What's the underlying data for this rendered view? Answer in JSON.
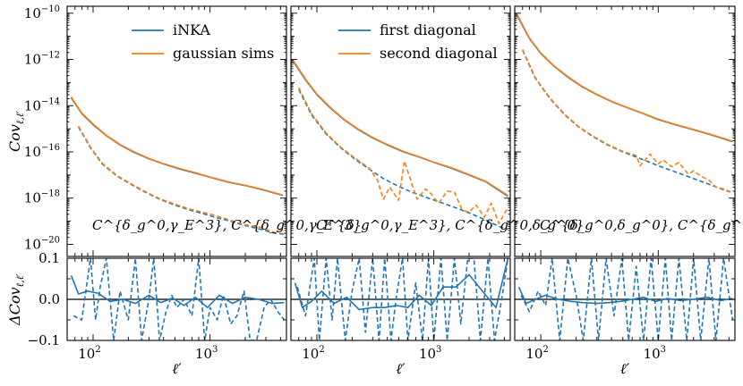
{
  "colors": {
    "blue": "#1f77b4",
    "orange": "#ff7f0e",
    "axis": "#000000"
  },
  "chart_data": [
    {
      "type": "line",
      "panel": "top-left",
      "xscale": "log",
      "yscale": "log",
      "xlim": [
        60,
        4500
      ],
      "ylim": [
        3e-21,
        2e-10
      ],
      "ylabel": "Cov_{ℓ,ℓ'}",
      "legend": {
        "placement": "top",
        "entries": [
          {
            "label": "iNKA",
            "color": "#1f77b4"
          },
          {
            "label": "gaussian sims",
            "color": "#ff7f0e"
          }
        ]
      },
      "annotation": "C^{δ_g^0,γ_E^3}, C^{δ_g^0,γ_E^3}",
      "series": [
        {
          "style": "solid",
          "color": "#1f77b4",
          "x": [
            65,
            80,
            100,
            130,
            170,
            220,
            300,
            400,
            550,
            750,
            1000,
            1400,
            2000,
            2800,
            4200
          ],
          "y": [
            2.2e-14,
            4.5e-15,
            1.5e-15,
            5e-16,
            2e-16,
            1e-16,
            5e-17,
            3e-17,
            1.8e-17,
            1.2e-17,
            8e-18,
            5e-18,
            3.5e-18,
            2.3e-18,
            1.3e-18
          ]
        },
        {
          "style": "solid",
          "color": "#ff7f0e",
          "x": [
            65,
            80,
            100,
            130,
            170,
            220,
            300,
            400,
            550,
            750,
            1000,
            1400,
            2000,
            2800,
            4200
          ],
          "y": [
            2.4e-14,
            4.8e-15,
            1.6e-15,
            5.2e-16,
            2.1e-16,
            1.05e-16,
            5.2e-17,
            3.1e-17,
            1.9e-17,
            1.25e-17,
            8.2e-18,
            5.2e-18,
            3.6e-18,
            2.4e-18,
            1.35e-18
          ]
        },
        {
          "style": "dashed",
          "color": "#1f77b4",
          "x": [
            75,
            95,
            120,
            160,
            210,
            280,
            370,
            500,
            650,
            850,
            1100,
            1500,
            2000,
            2700,
            3600,
            4300
          ],
          "y": [
            1.2e-15,
            1.5e-16,
            3e-17,
            9e-18,
            4e-18,
            1.8e-18,
            9e-19,
            5e-19,
            3.2e-19,
            2.2e-19,
            1.5e-19,
            1e-19,
            6.5e-20,
            4.5e-20,
            3e-20,
            2.8e-20
          ]
        },
        {
          "style": "dashed",
          "color": "#ff7f0e",
          "x": [
            75,
            95,
            120,
            160,
            210,
            280,
            370,
            500,
            650,
            850,
            1100,
            1500,
            2000,
            2700,
            3600,
            4000,
            4300
          ],
          "y": [
            1.3e-15,
            1.6e-16,
            3.2e-17,
            9.5e-18,
            4.2e-18,
            1.9e-18,
            9.5e-19,
            5.5e-19,
            3.5e-19,
            2.5e-19,
            1.8e-19,
            1.1e-19,
            7e-20,
            5.5e-20,
            3.2e-20,
            4.5e-20,
            2.6e-20
          ]
        }
      ]
    },
    {
      "type": "line",
      "panel": "top-middle",
      "xscale": "log",
      "yscale": "log",
      "xlim": [
        60,
        4500
      ],
      "ylim": [
        3e-21,
        2e-10
      ],
      "legend": {
        "placement": "top",
        "entries": [
          {
            "label": "first diagonal",
            "color": "#1f77b4"
          },
          {
            "label": "second diagonal",
            "color": "#ff7f0e"
          }
        ]
      },
      "annotation": "C^{δ_g^0,γ_E^3}, C^{δ_g^0,δ_g^0}",
      "series": [
        {
          "style": "solid",
          "color": "#1f77b4",
          "x": [
            62,
            80,
            100,
            130,
            170,
            220,
            300,
            400,
            550,
            750,
            1000,
            1400,
            2000,
            2800,
            4300
          ],
          "y": [
            9e-13,
            1.3e-13,
            3e-14,
            8e-15,
            2.5e-15,
            1e-15,
            4e-16,
            2e-16,
            1e-16,
            6e-17,
            3.5e-17,
            2e-17,
            1e-17,
            5e-18,
            1.2e-18
          ]
        },
        {
          "style": "solid",
          "color": "#ff7f0e",
          "x": [
            62,
            80,
            100,
            130,
            170,
            220,
            300,
            400,
            550,
            750,
            1000,
            1400,
            2000,
            2800,
            4300
          ],
          "y": [
            1e-12,
            1.4e-13,
            3.2e-14,
            8.5e-15,
            2.6e-15,
            1.05e-15,
            4.2e-16,
            2.1e-16,
            1.05e-16,
            6.2e-17,
            3.6e-17,
            2.1e-17,
            1.05e-17,
            5.2e-18,
            1.3e-18
          ]
        },
        {
          "style": "dashed",
          "color": "#1f77b4",
          "x": [
            70,
            90,
            120,
            160,
            210,
            280,
            370,
            500,
            650,
            850,
            1100,
            1500,
            2000,
            2700,
            3600,
            4300
          ],
          "y": [
            5e-14,
            4e-15,
            6e-16,
            1.5e-16,
            5e-17,
            1.8e-17,
            7e-18,
            3.2e-18,
            1.8e-18,
            1.1e-18,
            7e-19,
            4e-19,
            2.3e-19,
            1.2e-19,
            6e-20,
            4.5e-20
          ]
        },
        {
          "style": "dashed",
          "color": "#ff7f0e",
          "x": [
            70,
            90,
            120,
            160,
            210,
            280,
            330,
            370,
            420,
            500,
            560,
            650,
            720,
            850,
            950,
            1100,
            1300,
            1500,
            1750,
            2000,
            2300,
            2700,
            3100,
            3600,
            4300
          ],
          "y": [
            6e-14,
            4.5e-15,
            6.5e-16,
            1.6e-16,
            5.5e-17,
            2e-17,
            6e-18,
            9e-19,
            3e-18,
            8e-19,
            4e-17,
            4e-18,
            9e-19,
            2.5e-18,
            1.5e-18,
            6e-19,
            2e-18,
            1.8e-18,
            3e-19,
            2.5e-19,
            5e-19,
            1.5e-19,
            6e-19,
            8e-20,
            4e-19
          ]
        }
      ]
    },
    {
      "type": "line",
      "panel": "top-right",
      "xscale": "log",
      "yscale": "log",
      "xlim": [
        60,
        4500
      ],
      "ylim": [
        3e-21,
        2e-10
      ],
      "annotation": "C^{δ_g^0,δ_g^0}, C^{δ_g^0,δ_g^0}",
      "series": [
        {
          "style": "solid",
          "color": "#1f77b4",
          "x": [
            62,
            80,
            100,
            130,
            170,
            220,
            300,
            400,
            550,
            750,
            1000,
            1400,
            2000,
            2800,
            4300
          ],
          "y": [
            9e-11,
            8e-12,
            1.8e-12,
            5e-13,
            1.7e-13,
            7e-14,
            3e-14,
            1.5e-14,
            8e-15,
            4.5e-15,
            2.5e-15,
            1.5e-15,
            9e-16,
            5.5e-16,
            2.8e-16
          ]
        },
        {
          "style": "solid",
          "color": "#ff7f0e",
          "x": [
            62,
            80,
            100,
            130,
            170,
            220,
            300,
            400,
            550,
            750,
            1000,
            1400,
            2000,
            2800,
            4300
          ],
          "y": [
            1e-10,
            8.5e-12,
            1.9e-12,
            5.2e-13,
            1.8e-13,
            7.3e-14,
            3.1e-14,
            1.55e-14,
            8.2e-15,
            4.6e-15,
            2.6e-15,
            1.55e-15,
            9.3e-16,
            5.7e-16,
            2.9e-16
          ]
        },
        {
          "style": "dashed",
          "color": "#1f77b4",
          "x": [
            70,
            90,
            120,
            160,
            210,
            280,
            370,
            500,
            650,
            850,
            1100,
            1500,
            2000,
            2700,
            3600,
            4300
          ],
          "y": [
            2.5e-12,
            1.5e-13,
            2e-14,
            4e-15,
            1.2e-15,
            4.5e-16,
            2e-16,
            1e-16,
            6e-17,
            3.5e-17,
            2.1e-17,
            1.2e-17,
            7e-18,
            4e-18,
            2.3e-18,
            1.7e-18
          ]
        },
        {
          "style": "dashed",
          "color": "#ff7f0e",
          "x": [
            70,
            90,
            120,
            160,
            210,
            280,
            370,
            500,
            650,
            700,
            850,
            1000,
            1100,
            1300,
            1500,
            1800,
            2000,
            2300,
            2700,
            3100,
            3600,
            4300
          ],
          "y": [
            2.7e-12,
            1.6e-13,
            2.1e-14,
            4.2e-15,
            1.25e-15,
            4.7e-16,
            2.1e-16,
            1.05e-16,
            7e-17,
            2.5e-17,
            8e-17,
            3e-17,
            4.5e-17,
            2.3e-17,
            3.5e-17,
            1.1e-17,
            1.5e-17,
            9e-18,
            6e-18,
            3e-18,
            2.5e-18,
            1.7e-18
          ]
        }
      ]
    },
    {
      "type": "line",
      "panel": "bottom-left",
      "xscale": "log",
      "xlim": [
        60,
        4500
      ],
      "ylim": [
        -0.1,
        0.1
      ],
      "xlabel": "ℓ'",
      "ylabel": "ΔCov_{ℓ,ℓ'}",
      "series": [
        {
          "style": "solid",
          "color": "#1f77b4",
          "x": [
            65,
            75,
            90,
            110,
            140,
            180,
            230,
            300,
            380,
            480,
            600,
            750,
            950,
            1200,
            1550,
            2000,
            2600,
            3400,
            4300
          ],
          "y": [
            0.058,
            0.013,
            0.02,
            0.015,
            -0.005,
            0.0,
            -0.01,
            0.01,
            -0.008,
            0.003,
            -0.015,
            0.005,
            -0.02,
            0.01,
            -0.01,
            0.005,
            0.0,
            -0.01,
            -0.008
          ]
        },
        {
          "style": "dashed",
          "color": "#1f77b4",
          "x": [
            68,
            80,
            95,
            105,
            115,
            130,
            150,
            170,
            200,
            230,
            260,
            300,
            330,
            370,
            420,
            470,
            520,
            600,
            700,
            800,
            900,
            1000,
            1150,
            1300,
            1500,
            1700,
            1950,
            2200,
            2500,
            2900,
            3300,
            3800,
            4300
          ],
          "y": [
            -0.04,
            -0.05,
            0.1,
            -0.05,
            0.03,
            0.1,
            -0.1,
            0.02,
            -0.05,
            0.1,
            -0.1,
            0.0,
            0.1,
            -0.1,
            -0.03,
            0.01,
            -0.02,
            0.0,
            -0.04,
            0.1,
            -0.1,
            -0.02,
            -0.05,
            0.01,
            -0.06,
            -0.04,
            0.02,
            -0.1,
            -0.1,
            -0.02,
            0.0,
            -0.03,
            -0.05
          ]
        }
      ]
    },
    {
      "type": "line",
      "panel": "bottom-middle",
      "xscale": "log",
      "xlim": [
        60,
        4500
      ],
      "ylim": [
        -0.1,
        0.1
      ],
      "xlabel": "ℓ'",
      "series": [
        {
          "style": "solid",
          "color": "#1f77b4",
          "x": [
            65,
            75,
            90,
            110,
            140,
            180,
            230,
            300,
            380,
            480,
            600,
            750,
            950,
            1200,
            1550,
            2000,
            2600,
            3400,
            4300
          ],
          "y": [
            0.04,
            -0.02,
            -0.005,
            0.02,
            -0.01,
            0.005,
            -0.025,
            -0.02,
            -0.02,
            -0.015,
            -0.02,
            0.01,
            -0.015,
            0.03,
            0.03,
            0.06,
            0.02,
            -0.02,
            0.1
          ]
        },
        {
          "style": "dashed",
          "color": "#1f77b4",
          "x": [
            68,
            80,
            95,
            105,
            120,
            135,
            150,
            175,
            200,
            230,
            260,
            300,
            340,
            380,
            430,
            480,
            540,
            600,
            700,
            800,
            900,
            1000,
            1150,
            1300,
            1500,
            1700,
            1950,
            2200,
            2500,
            2900,
            3300,
            3800,
            4300
          ],
          "y": [
            0.03,
            -0.04,
            0.1,
            -0.1,
            0.1,
            -0.05,
            0.1,
            -0.1,
            0.02,
            0.1,
            -0.08,
            0.1,
            -0.1,
            0.1,
            -0.1,
            0.01,
            0.1,
            -0.1,
            0.04,
            -0.1,
            0.1,
            -0.1,
            0.1,
            -0.1,
            0.1,
            -0.06,
            0.1,
            0.1,
            -0.1,
            0.1,
            -0.1,
            0.0,
            0.1
          ]
        }
      ]
    },
    {
      "type": "line",
      "panel": "bottom-right",
      "xscale": "log",
      "xlim": [
        60,
        4500
      ],
      "ylim": [
        -0.1,
        0.1
      ],
      "xlabel": "ℓ'",
      "series": [
        {
          "style": "solid",
          "color": "#1f77b4",
          "x": [
            65,
            75,
            90,
            110,
            140,
            180,
            230,
            300,
            380,
            480,
            600,
            750,
            950,
            1200,
            1550,
            2000,
            2600,
            3400,
            4300
          ],
          "y": [
            0.03,
            -0.01,
            0.0,
            0.01,
            0.0,
            -0.005,
            -0.008,
            -0.01,
            -0.008,
            -0.005,
            0.0,
            0.005,
            -0.005,
            0.002,
            -0.003,
            0.0,
            0.005,
            -0.003,
            0.002
          ]
        },
        {
          "style": "dashed",
          "color": "#1f77b4",
          "x": [
            68,
            80,
            95,
            110,
            125,
            145,
            170,
            200,
            230,
            270,
            310,
            360,
            420,
            490,
            560,
            650,
            750,
            870,
            1000,
            1150,
            1300,
            1500,
            1750,
            2000,
            2300,
            2700,
            3100,
            3600,
            4300
          ],
          "y": [
            0.01,
            -0.03,
            0.02,
            -0.015,
            0.1,
            -0.1,
            0.1,
            0.01,
            -0.1,
            0.1,
            -0.1,
            0.1,
            -0.04,
            0.1,
            -0.1,
            0.08,
            -0.1,
            0.1,
            -0.1,
            0.1,
            -0.1,
            0.1,
            -0.1,
            0.1,
            -0.1,
            0.1,
            -0.1,
            0.1,
            -0.05
          ]
        }
      ]
    }
  ],
  "axis_text": {
    "top_ylabel": "Cov",
    "top_ylabel_sub": "ℓ,ℓ′",
    "bottom_ylabel": "ΔCov",
    "bottom_ylabel_sub": "ℓ,ℓ′",
    "xlabel": "ℓ′",
    "top_yticks": [
      {
        "base": "10",
        "exp": "−10",
        "value": 1e-10
      },
      {
        "base": "10",
        "exp": "−12",
        "value": 1e-12
      },
      {
        "base": "10",
        "exp": "−14",
        "value": 1e-14
      },
      {
        "base": "10",
        "exp": "−16",
        "value": 1e-16
      },
      {
        "base": "10",
        "exp": "−18",
        "value": 1e-18
      },
      {
        "base": "10",
        "exp": "−20",
        "value": 1e-20
      }
    ],
    "bottom_yticks": [
      {
        "label": "0.1",
        "value": 0.1
      },
      {
        "label": "0.0",
        "value": 0.0
      },
      {
        "label": "−0.1",
        "value": -0.1
      }
    ],
    "xticks": [
      {
        "base": "10",
        "exp": "2",
        "value": 100
      },
      {
        "base": "10",
        "exp": "3",
        "value": 1000
      }
    ]
  }
}
